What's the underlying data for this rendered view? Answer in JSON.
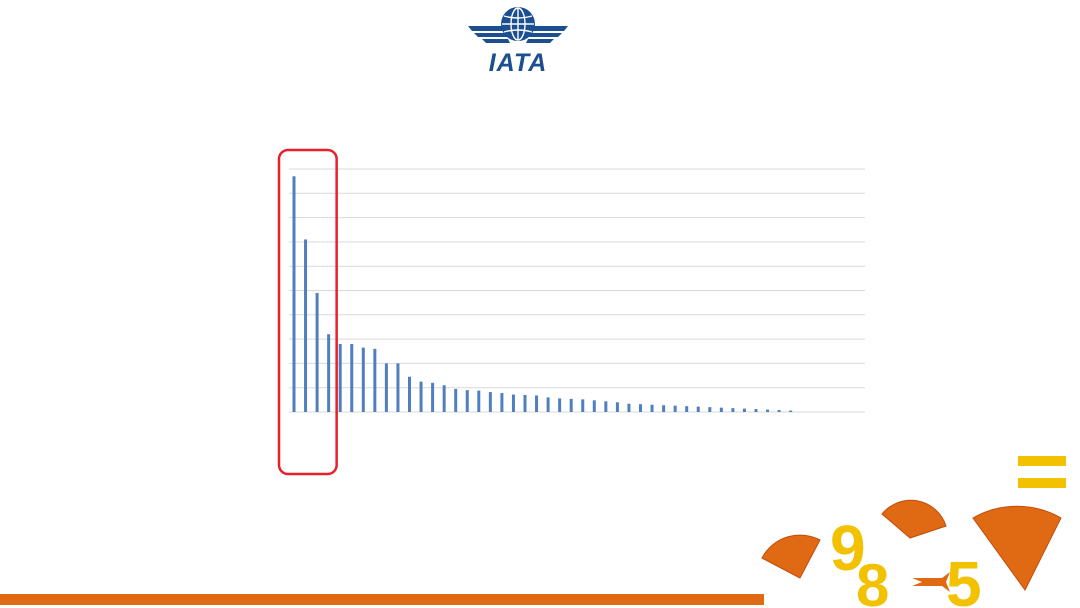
{
  "logo": {
    "text": "IATA",
    "color": "#1b4f8f"
  },
  "colors": {
    "bar": "#4f7fbf",
    "grid": "#d9d9d9",
    "highlight": "#e8202a",
    "accent_orange": "#e06a14",
    "accent_yellow": "#f2c100"
  },
  "chart_data": {
    "type": "bar",
    "title": "",
    "xlabel": "",
    "ylabel": "",
    "ylim": [
      0,
      10
    ],
    "grid": true,
    "tick_labels_visible": false,
    "highlight": {
      "shape": "rounded-rectangle",
      "covers_bars": [
        1,
        2,
        3,
        4
      ]
    },
    "values": [
      9.7,
      7.1,
      4.9,
      3.2,
      2.8,
      2.8,
      2.65,
      2.6,
      2.0,
      2.0,
      1.45,
      1.25,
      1.2,
      1.1,
      0.95,
      0.9,
      0.88,
      0.82,
      0.78,
      0.72,
      0.7,
      0.68,
      0.6,
      0.56,
      0.54,
      0.52,
      0.48,
      0.44,
      0.4,
      0.34,
      0.32,
      0.3,
      0.28,
      0.26,
      0.24,
      0.22,
      0.2,
      0.18,
      0.16,
      0.14,
      0.12,
      0.1,
      0.08,
      0.06
    ]
  },
  "decor": {
    "digits": [
      "9",
      "8",
      "5"
    ],
    "equals": "="
  }
}
